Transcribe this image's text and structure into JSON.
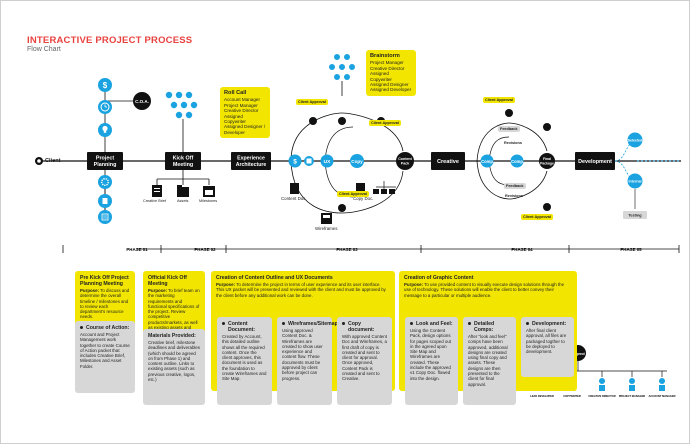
{
  "header": {
    "title": "INTERACTIVE PROJECT PROCESS",
    "subtitle": "Flow Chart"
  },
  "nodes": {
    "client": "Client",
    "project_planning": "Project Planning",
    "kick_off": "Kick Off Meeting",
    "experience": "Experience Architecture",
    "creative": "Creative",
    "development": "Development",
    "coa": "C.O.A.",
    "sitemap": "Site Map",
    "ux": "UX",
    "copy": "Copy",
    "content_pack": "Content Pack",
    "comp": "Comp",
    "final_package": "Final Package",
    "selected": "Selected",
    "internal": "Internal",
    "testing": "Testing"
  },
  "node_labels": {
    "creative_brief": "Creative Brief",
    "assets": "Assets",
    "milestones": "Milestones",
    "content_doc": "Content Doc.",
    "wireframes": "Wireframes",
    "copy_doc": "Copy Doc.",
    "feedback": "Feedback",
    "revisions": "Revisions"
  },
  "approval_tags": {
    "client_approval": "Client Approval"
  },
  "roll_call": {
    "title": "Roll Call",
    "lines": [
      "Account Manager",
      "Project Manager",
      "Creative Director",
      "Assigned Copywriter",
      "Assigned Designer /",
      "Developer"
    ]
  },
  "brainstorm": {
    "title": "Brainstorm",
    "lines": [
      "Project Manager",
      "Creative Director",
      "Assigned Copywriter",
      "Assigned Designer",
      "Assigned Developer"
    ]
  },
  "phases": [
    "PHASE 01",
    "PHASE 02",
    "PHASE 03",
    "PHASE 04",
    "PHASE 05"
  ],
  "pre_kickoff": {
    "title": "Pre Kick Off Project Planning Meeting",
    "purpose_label": "Purpose:",
    "purpose": "To discuss and determine the overall timeline / milestones and to review each department's resource needs.",
    "course_title": "Course of Action:",
    "course": "Account and Project Management work together to create Course of Action packet that includes Creative Brief, Milestones and Asset Folder."
  },
  "official_kickoff": {
    "title": "Official Kick Off Meeting",
    "purpose_label": "Purpose:",
    "purpose": "To brief team on the marketing requirements and functional specifications of the project. Review competitive products/markets, as well as existing assets and identify the personas (user definitions and usage scenarios) and requirements document.",
    "materials_title": "Materials Provided:",
    "materials": "Creative brief, milestone deadlines and deliverables (which should be agreed on from Phase 1) and content outline. Links to existing assets (such as previous creative, logos, etc.)"
  },
  "content_ux": {
    "title": "Creation of Content Outline and UX Documents",
    "purpose_label": "Purpose:",
    "purpose": "To determine the project in terms of user experience and its user interface. This UX packet will be presented and reviewed with the client and must be approved by the client before any additional work can be done.",
    "boxes": [
      {
        "title": "Content Document:",
        "body": "Created by Account, this detailed outline shows all the required content. Once the client approves, this document is used as the foundation to create Wireframes and Site Map."
      },
      {
        "title": "Wireframes/Sitemap:",
        "body": "Using approved Content Doc. & Wireframes are created to show user experience and content flow. These documents must be approved by client before project can progress."
      },
      {
        "title": "Copy document:",
        "body": "With approved Content Doc and Wireframes, a first draft of copy is created and sent to client for approval. Once approved, Content Pack is created and sent to Creative."
      }
    ]
  },
  "graphic_content": {
    "title": "Creation of Graphic Content",
    "purpose_label": "Purpose:",
    "purpose": "To use provided content to visually execute design solutions through the use of technology. These solutions will enable the client to better convey their message to a particular or multiple audience.",
    "boxes": [
      {
        "title": "Look and Feel:",
        "body": "Using the Content Pack, design options for pages scoped out in the agreed upon Site Map and Wireframes are created. These include the approved v1 Copy Doc. flowed into the design."
      },
      {
        "title": "Detailed Comps:",
        "body": "After \"look and feel\" comps have been approved, additional designs are created using final copy and assets. These designs are then presented to the client for final approval."
      },
      {
        "title": "Development:",
        "body": "After final client approval, all files are packaged togther to be deployed to development."
      }
    ]
  },
  "legend": {
    "title": "Legend",
    "roles": [
      "LEAD DEVELOPER",
      "COPYWRITER",
      "CREATIVE DIRECTOR",
      "PROJECT MANAGER",
      "ACCOUNT MANAGER"
    ]
  },
  "colors": {
    "accent": "#e8423f",
    "blue": "#1aa3e0",
    "yellow": "#f2e600",
    "black": "#111111",
    "gray": "#d7d7d7"
  }
}
